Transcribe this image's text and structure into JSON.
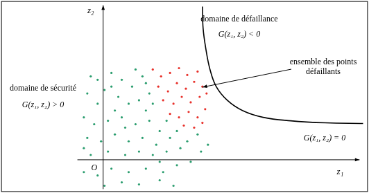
{
  "chart_data": {
    "type": "scatter",
    "x_label": "z₁",
    "y_label": "z₂",
    "origin_label": "O",
    "xlim": [
      -14.8,
      38.4
    ],
    "ylim": [
      -4.7,
      23.2
    ],
    "tick_labels": false,
    "grid": false,
    "series": [
      {
        "type": "scatter",
        "color": "#2a9d6e",
        "marker": "circle",
        "x": [
          -1.8,
          1.2,
          2.7,
          4.7,
          -2.3,
          0.2,
          2.2,
          4.2,
          6.2,
          -0.8,
          1.7,
          3.7,
          5.2,
          7.2,
          -2.8,
          -1.3,
          0.7,
          2.7,
          4.7,
          6.7,
          8.2,
          -2.3,
          -0.3,
          1.7,
          3.7,
          5.7,
          7.7,
          9.7,
          -1.8,
          0.7,
          3.2,
          5.2,
          7.2,
          9.2,
          11.2,
          -2.8,
          -0.8,
          1.2,
          3.7,
          6.2,
          8.7,
          10.7,
          12.7,
          0.2,
          2.7,
          5.2,
          8.2,
          10.2,
          1.2,
          3.2,
          6.2,
          9.2,
          10.7,
          12.2,
          13.7,
          -2.8,
          5.7,
          6.7,
          -0.8,
          8.2,
          14.2,
          15.2
        ],
        "values": [
          12.2,
          12.7,
          11.7,
          13.2,
          9.7,
          10.2,
          9.2,
          10.7,
          11.2,
          8.2,
          7.2,
          8.2,
          8.7,
          8.2,
          6.2,
          5.2,
          5.7,
          6.2,
          5.2,
          5.7,
          4.2,
          3.2,
          2.7,
          3.7,
          2.7,
          3.2,
          2.2,
          3.2,
          0.7,
          1.2,
          0.7,
          1.2,
          0.7,
          1.2,
          1.7,
          -1.8,
          -2.3,
          -1.3,
          -1.8,
          -1.3,
          -1.8,
          -0.8,
          -0.3,
          -3.8,
          -3.3,
          -3.6,
          -3,
          -3.8,
          10.7,
          4.7,
          7.2,
          5.7,
          4.2,
          2.7,
          3.7,
          1.7,
          12.2,
          9.7,
          11.7,
          -0.3,
          1.2,
          2.2
        ]
      },
      {
        "type": "scatter",
        "color": "#e8302a",
        "marker": "circle",
        "x": [
          7.2,
          8.4,
          9.7,
          11,
          12.2,
          13.7,
          8,
          9.4,
          10.7,
          12,
          13.2,
          14.4,
          8.7,
          10.2,
          11.4,
          12.7,
          14,
          15,
          9.7,
          11,
          12.4,
          13.7,
          14.8,
          11.7,
          13.2,
          14.4
        ],
        "values": [
          13.2,
          12.2,
          12.7,
          13.4,
          12.4,
          12.9,
          10.7,
          10,
          11.2,
          10.4,
          11.4,
          10.7,
          8.7,
          8.2,
          9.2,
          8.4,
          9.2,
          9.7,
          6.7,
          6.2,
          7,
          6.2,
          7.4,
          5,
          4.7,
          5.4
        ]
      },
      {
        "type": "line",
        "color": "#000000",
        "line_style": "solid",
        "x": [
          14.4,
          14.5,
          14.9,
          15.5,
          16.4,
          18,
          20.2,
          23.2,
          27.2,
          32.2,
          37.7
        ],
        "values": [
          22.4,
          19.2,
          16.2,
          13.2,
          10.7,
          8.7,
          7.2,
          6.2,
          5.7,
          5.4,
          5.3
        ]
      }
    ],
    "annotations": [
      "domaine de défaillance",
      "G(z₁, z₂) < 0",
      "ensemble des points",
      "défaillants",
      "domaine de sécurité",
      "G(z₁, z₂) > 0",
      "G(z₁, z₂) = 0"
    ]
  }
}
